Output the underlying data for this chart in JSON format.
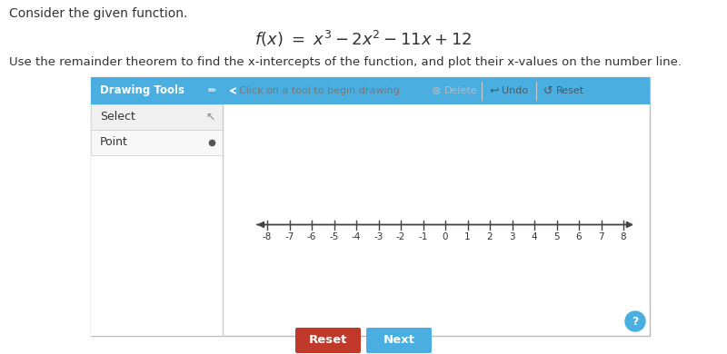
{
  "bg_color": "#ffffff",
  "consider_text": "Consider the given function.",
  "formula_text": "$f(x)\\ =\\ x^3 - 2x^2 - 11x + 12$",
  "instruction_text": "Use the remainder theorem to find the x-intercepts of the function, and plot their x-values on the number line.",
  "drawing_tools_label": "Drawing Tools",
  "drawing_tools_bg": "#4aaee0",
  "select_label": "Select",
  "point_label": "Point",
  "click_text": "Click on a tool to begin drawing.",
  "delete_text": "Delete",
  "undo_text": "Undo",
  "reset_text_toolbar": "Reset",
  "tick_labels": [
    -8,
    -7,
    -6,
    -5,
    -4,
    -3,
    -2,
    -1,
    0,
    1,
    2,
    3,
    4,
    5,
    6,
    7,
    8
  ],
  "reset_btn_color": "#c0392b",
  "next_btn_color": "#4aaee0",
  "reset_btn_text": "Reset",
  "next_btn_text": "Next",
  "help_btn_color": "#4aaee0",
  "outer_box_edge": "#bbbbbb",
  "sidebar_border": "#cccccc",
  "text_color": "#333333",
  "arrow_color": "#444444",
  "toolbar_divider": "#cccccc",
  "delete_color": "#aaaaaa",
  "undo_reset_color": "#555555",
  "panel_bg": "#ffffff",
  "select_bg": "#f0f0f0",
  "point_bg": "#f8f8f8"
}
